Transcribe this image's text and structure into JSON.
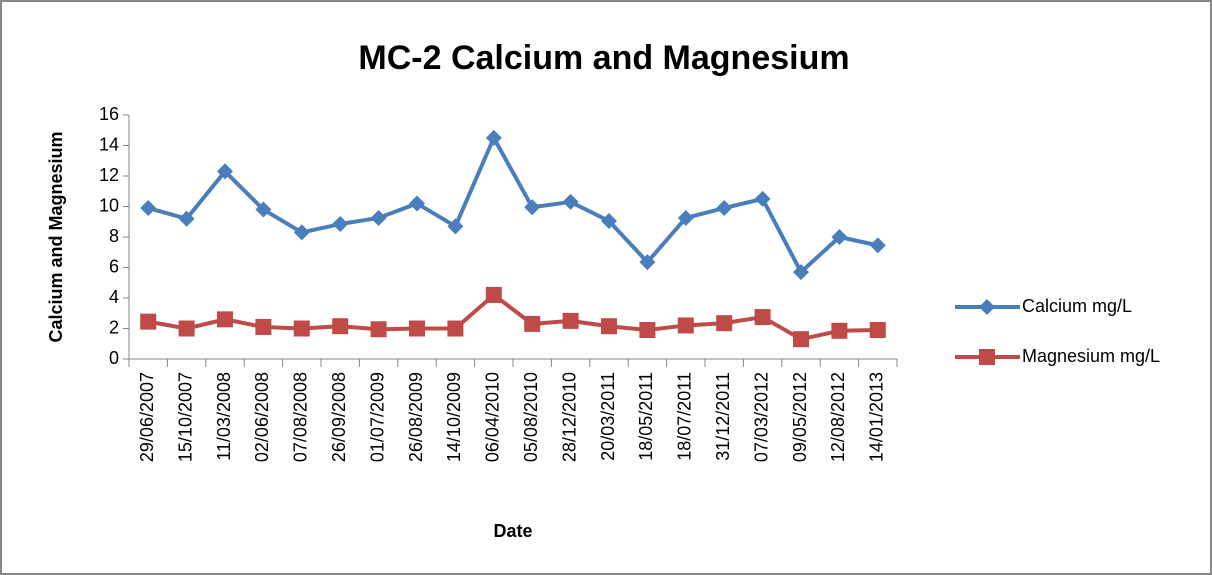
{
  "chart_data": {
    "type": "line",
    "title": "MC-2 Calcium and Magnesium",
    "x_label": "Date",
    "y_label": "Calcium and Magnesium",
    "categories": [
      "29/06/2007",
      "15/10/2007",
      "11/03/2008",
      "02/06/2008",
      "07/08/2008",
      "26/09/2008",
      "01/07/2009",
      "26/08/2009",
      "14/10/2009",
      "06/04/2010",
      "05/08/2010",
      "28/12/2010",
      "20/03/2011",
      "18/05/2011",
      "18/07/2011",
      "31/12/2011",
      "07/03/2012",
      "09/05/2012",
      "12/08/2012",
      "14/01/2013"
    ],
    "series": [
      {
        "name": "Calcium mg/L",
        "color": "#4a7ebb",
        "marker": "diamond",
        "values": [
          9.9,
          9.2,
          12.3,
          9.8,
          8.3,
          8.85,
          9.25,
          10.2,
          8.7,
          14.5,
          9.95,
          10.3,
          9.05,
          6.35,
          9.25,
          9.9,
          10.5,
          5.7,
          8.0,
          7.45
        ]
      },
      {
        "name": "Magnesium mg/L",
        "color": "#be4b48",
        "marker": "square",
        "values": [
          2.45,
          2.0,
          2.6,
          2.1,
          2.0,
          2.15,
          1.95,
          2.0,
          2.0,
          4.2,
          2.3,
          2.5,
          2.15,
          1.9,
          2.2,
          2.35,
          2.75,
          1.3,
          1.85,
          1.9
        ]
      }
    ],
    "ylim": [
      0,
      16
    ],
    "yticks": [
      0,
      2,
      4,
      6,
      8,
      10,
      12,
      14,
      16
    ],
    "legend": "right"
  }
}
